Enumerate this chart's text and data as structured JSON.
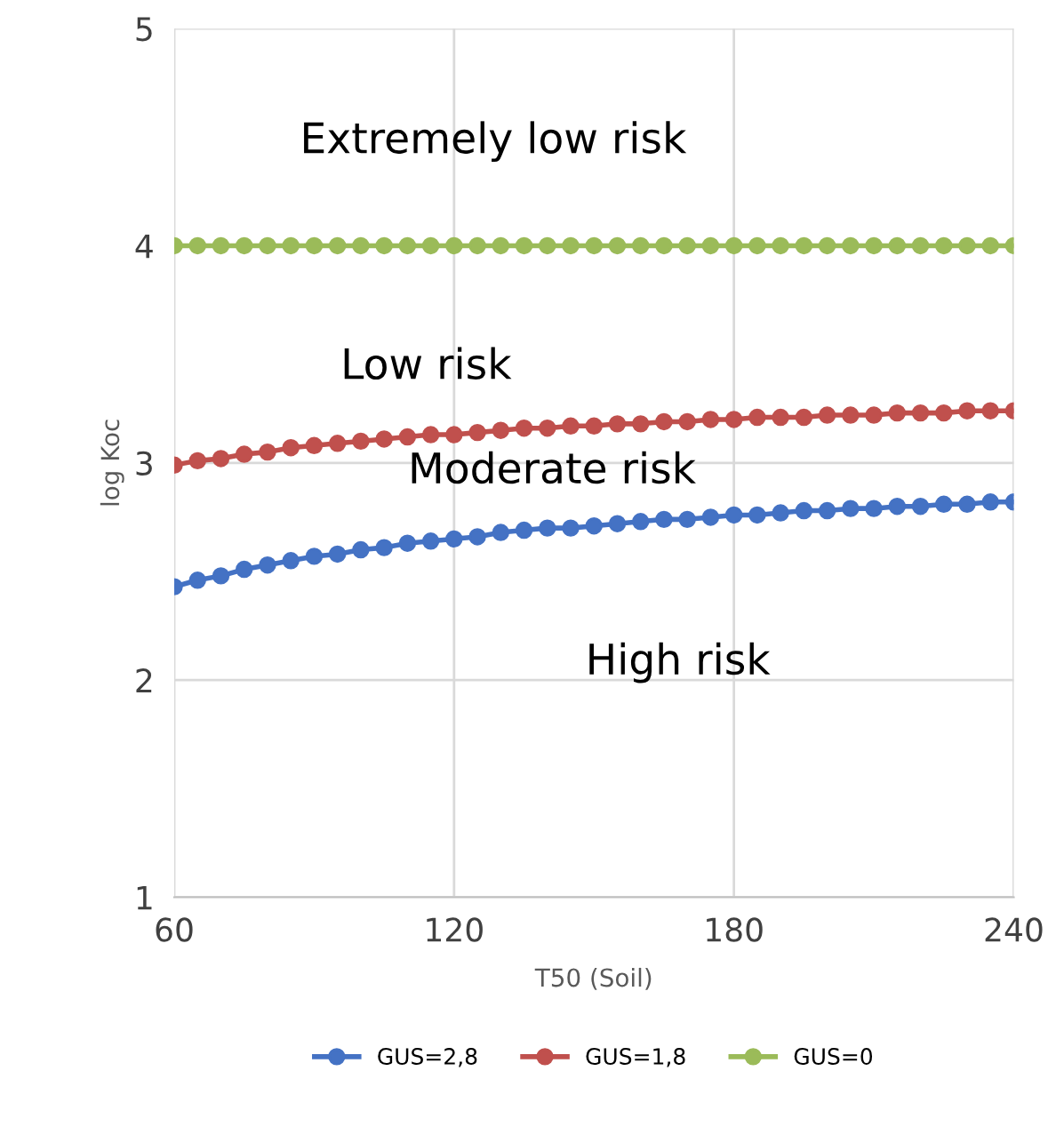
{
  "chart_data": {
    "type": "line",
    "xlabel": "T50 (Soil)",
    "ylabel": "log Koc",
    "x": [
      60,
      65,
      70,
      75,
      80,
      85,
      90,
      95,
      100,
      105,
      110,
      115,
      120,
      125,
      130,
      135,
      140,
      145,
      150,
      155,
      160,
      165,
      170,
      175,
      180,
      185,
      190,
      195,
      200,
      205,
      210,
      215,
      220,
      225,
      230,
      235,
      240
    ],
    "series": [
      {
        "name": "GUS=2,8",
        "color": "#4472c4",
        "values": [
          2.43,
          2.46,
          2.48,
          2.51,
          2.53,
          2.55,
          2.57,
          2.58,
          2.6,
          2.61,
          2.63,
          2.64,
          2.65,
          2.66,
          2.68,
          2.69,
          2.7,
          2.7,
          2.71,
          2.72,
          2.73,
          2.74,
          2.74,
          2.75,
          2.76,
          2.76,
          2.77,
          2.78,
          2.78,
          2.79,
          2.79,
          2.8,
          2.8,
          2.81,
          2.81,
          2.82,
          2.82
        ]
      },
      {
        "name": "GUS=1,8",
        "color": "#c0504d",
        "values": [
          2.99,
          3.01,
          3.02,
          3.04,
          3.05,
          3.07,
          3.08,
          3.09,
          3.1,
          3.11,
          3.12,
          3.13,
          3.13,
          3.14,
          3.15,
          3.16,
          3.16,
          3.17,
          3.17,
          3.18,
          3.18,
          3.19,
          3.19,
          3.2,
          3.2,
          3.21,
          3.21,
          3.21,
          3.22,
          3.22,
          3.22,
          3.23,
          3.23,
          3.23,
          3.24,
          3.24,
          3.24
        ]
      },
      {
        "name": "GUS=0",
        "color": "#9bbb59",
        "values": [
          4,
          4,
          4,
          4,
          4,
          4,
          4,
          4,
          4,
          4,
          4,
          4,
          4,
          4,
          4,
          4,
          4,
          4,
          4,
          4,
          4,
          4,
          4,
          4,
          4,
          4,
          4,
          4,
          4,
          4,
          4,
          4,
          4,
          4,
          4,
          4,
          4
        ]
      }
    ],
    "annotations": [
      "Extremely low risk",
      "Low risk",
      "Moderate risk",
      "High risk"
    ],
    "xlim": [
      60,
      240
    ],
    "ylim": [
      1,
      5
    ],
    "xticks": [
      60,
      120,
      180,
      240
    ],
    "yticks": [
      1,
      2,
      3,
      4,
      5
    ],
    "grid": true,
    "legend": "bottom",
    "marker": "circle",
    "line_style": "solid"
  }
}
